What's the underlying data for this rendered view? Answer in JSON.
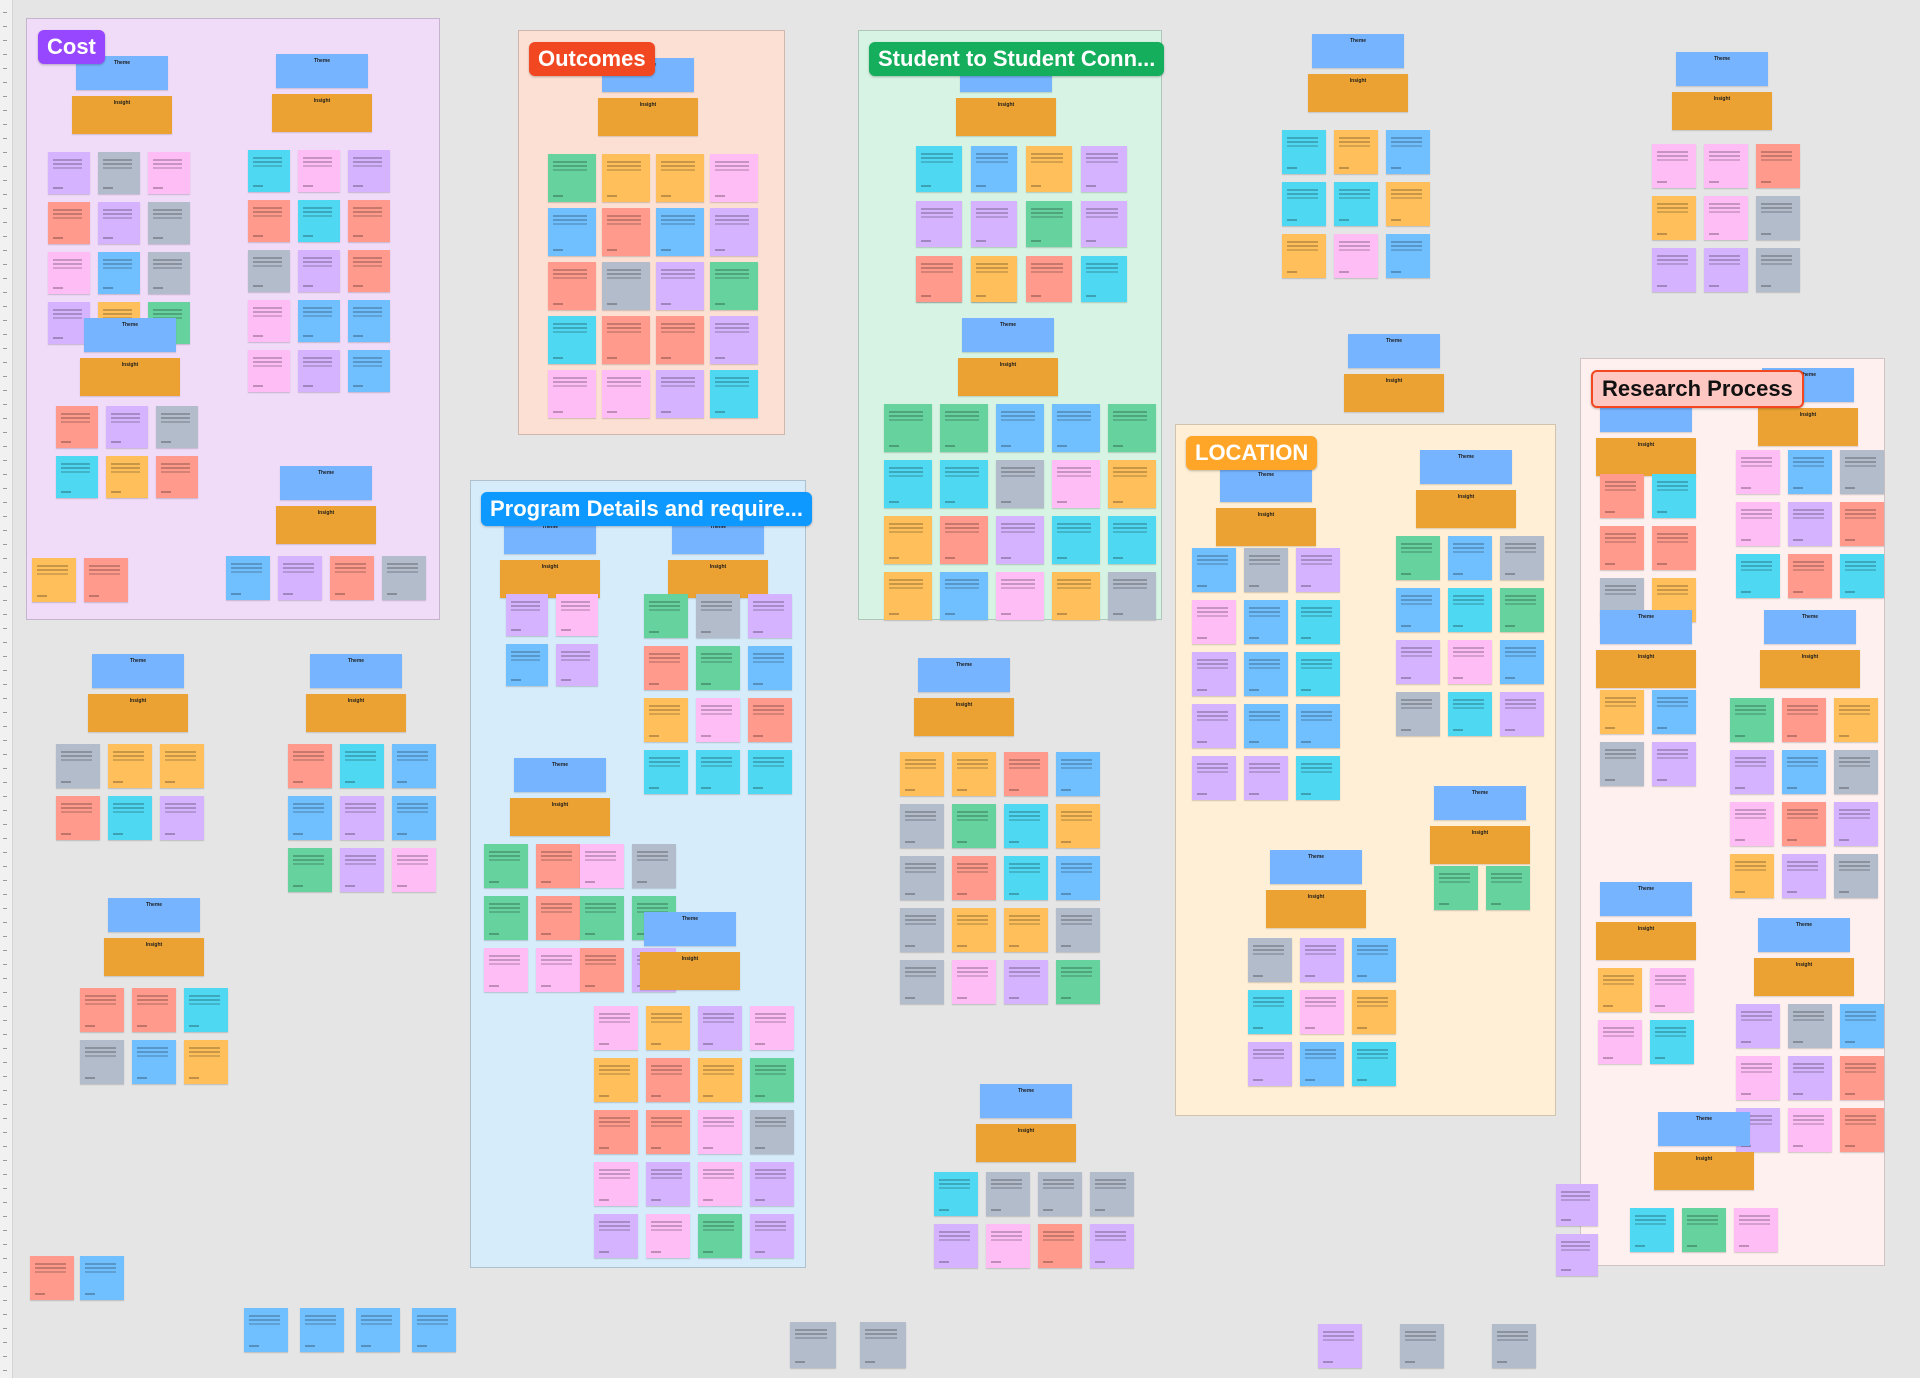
{
  "sections": [
    {
      "name": "cost",
      "label": "Cost",
      "bg": "#f0dcf9",
      "label_bg": "#9747ff"
    },
    {
      "name": "outcomes",
      "label": "Outcomes",
      "bg": "#fde0d4",
      "label_bg": "#f24822"
    },
    {
      "name": "student-to-student",
      "label": "Student to Student Conn...",
      "bg": "#d6f3e3",
      "label_bg": "#14ae5c"
    },
    {
      "name": "program-details",
      "label": "Program Details and require...",
      "bg": "#d6ecfb",
      "label_bg": "#0d99ff"
    },
    {
      "name": "location",
      "label": "LOCATION",
      "bg": "#feefd6",
      "label_bg": "#ffa629"
    },
    {
      "name": "research-process",
      "label": "Research Process",
      "bg": "#fdf0ee",
      "label_bg": "#ffc7c2"
    }
  ],
  "card_text": {
    "theme": "Theme",
    "insight": "Insight"
  },
  "colors": {
    "theme": "#77b4ff",
    "insight": "#eba232",
    "pink": "#ffbdf6",
    "salmon": "#ff9a8c",
    "orange": "#ffc05c",
    "lavender": "#d6b3ff",
    "grey": "#b3bccb",
    "cyan": "#4fd8f2",
    "green": "#66d39f",
    "blue": "#70c0ff"
  }
}
